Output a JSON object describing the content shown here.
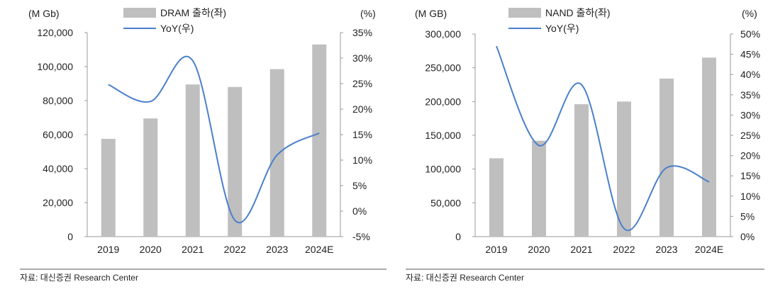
{
  "chart_data": [
    {
      "type": "bar+line",
      "title": "",
      "left_unit": "(M Gb)",
      "right_unit": "(%)",
      "categories": [
        "2019",
        "2020",
        "2021",
        "2022",
        "2023",
        "2024E"
      ],
      "series": [
        {
          "name": "DRAM 출하(좌)",
          "kind": "bar",
          "axis": "left",
          "color": "#bfbfbf",
          "values": [
            57500,
            69500,
            89500,
            88000,
            98500,
            113000
          ]
        },
        {
          "name": "YoY(우)",
          "kind": "line",
          "axis": "right",
          "color": "#4a7fcb",
          "values": [
            24.8,
            21.5,
            29.5,
            -1.8,
            11.0,
            15.3
          ]
        }
      ],
      "left_ylim": [
        0,
        120000
      ],
      "left_ticks": [
        "0",
        "20,000",
        "40,000",
        "60,000",
        "80,000",
        "100,000",
        "120,000"
      ],
      "right_ylim": [
        -5,
        35
      ],
      "right_ticks": [
        "-5%",
        "0%",
        "5%",
        "10%",
        "15%",
        "20%",
        "25%",
        "30%",
        "35%"
      ],
      "source": "자료: 대신증권 Research Center"
    },
    {
      "type": "bar+line",
      "title": "",
      "left_unit": "(M GB)",
      "right_unit": "(%)",
      "categories": [
        "2019",
        "2020",
        "2021",
        "2022",
        "2023",
        "2024E"
      ],
      "series": [
        {
          "name": "NAND 출하(좌)",
          "kind": "bar",
          "axis": "left",
          "color": "#bfbfbf",
          "values": [
            116000,
            142000,
            196000,
            200000,
            234000,
            265000
          ]
        },
        {
          "name": "YoY(우)",
          "kind": "line",
          "axis": "right",
          "color": "#4a7fcb",
          "values": [
            47.0,
            22.5,
            37.5,
            2.0,
            17.0,
            13.5
          ]
        }
      ],
      "left_ylim": [
        0,
        300000
      ],
      "left_ticks": [
        "0",
        "50,000",
        "100,000",
        "150,000",
        "200,000",
        "250,000",
        "300,000"
      ],
      "right_ylim": [
        0,
        50
      ],
      "right_ticks": [
        "0%",
        "5%",
        "10%",
        "15%",
        "20%",
        "25%",
        "30%",
        "35%",
        "40%",
        "45%",
        "50%"
      ],
      "source": "자료: 대신증권 Research Center"
    }
  ]
}
